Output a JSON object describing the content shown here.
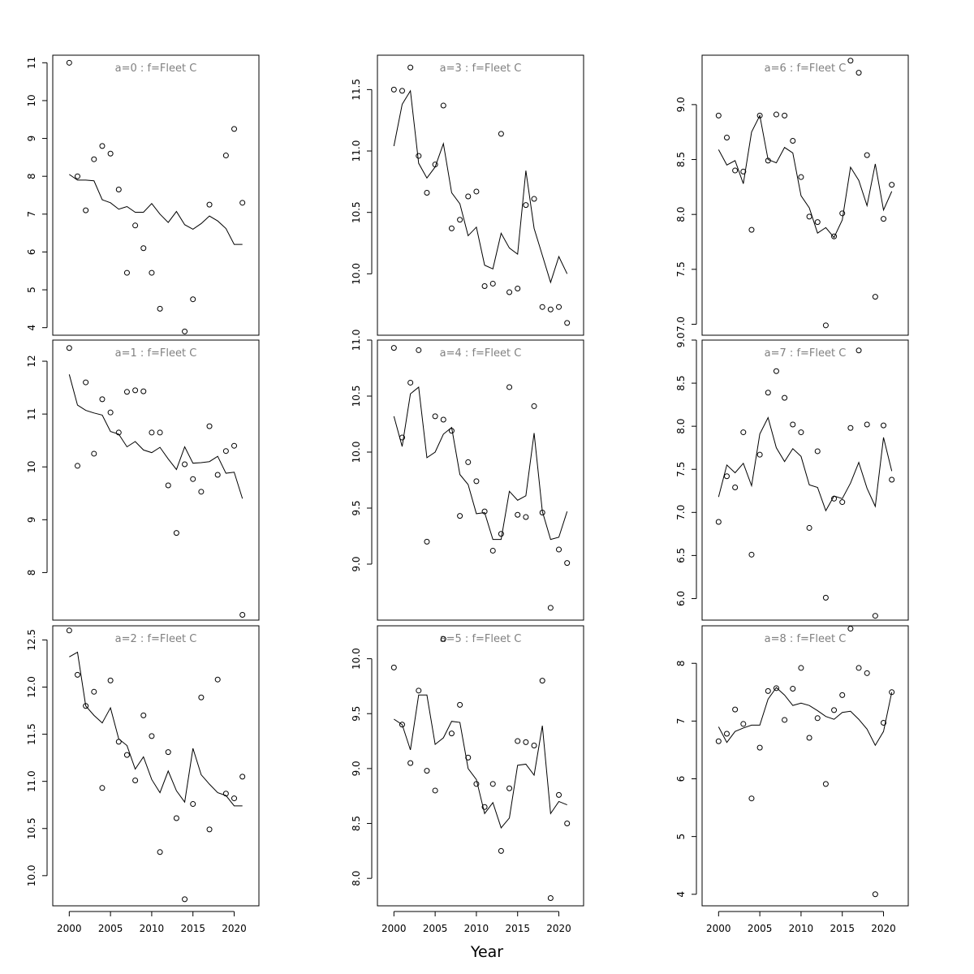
{
  "xlabel": "Year",
  "chart_data": [
    {
      "type": "line",
      "title": "a=0  :  f=Fleet C",
      "ylim": [
        3.8,
        11.2
      ],
      "yticks": [
        4,
        5,
        6,
        7,
        8,
        9,
        10,
        11
      ],
      "xlim": [
        1998,
        2023
      ],
      "xticks": [
        2000,
        2005,
        2010,
        2015,
        2020
      ],
      "show_xaxis": false,
      "x": [
        2000,
        2001,
        2002,
        2003,
        2004,
        2005,
        2006,
        2007,
        2008,
        2009,
        2010,
        2011,
        2012,
        2013,
        2014,
        2015,
        2016,
        2017,
        2018,
        2019,
        2020,
        2021
      ],
      "series": [
        {
          "style": "points",
          "values": [
            11.0,
            8.0,
            7.1,
            8.45,
            8.8,
            8.6,
            7.65,
            5.45,
            6.7,
            6.1,
            5.45,
            4.5,
            null,
            null,
            3.9,
            4.75,
            null,
            7.25,
            null,
            8.55,
            9.25,
            7.3
          ]
        },
        {
          "style": "line",
          "values": [
            8.05,
            7.9,
            7.9,
            7.88,
            7.38,
            7.3,
            7.13,
            7.2,
            7.05,
            7.05,
            7.28,
            7.0,
            6.78,
            7.07,
            6.72,
            6.6,
            6.75,
            6.95,
            6.82,
            6.62,
            6.2,
            6.2
          ]
        }
      ]
    },
    {
      "type": "line",
      "title": "a=1  :  f=Fleet C",
      "ylim": [
        7.1,
        12.4
      ],
      "yticks": [
        8,
        9,
        10,
        11,
        12
      ],
      "xlim": [
        1998,
        2023
      ],
      "xticks": [
        2000,
        2005,
        2010,
        2015,
        2020
      ],
      "show_xaxis": false,
      "x": [
        2000,
        2001,
        2002,
        2003,
        2004,
        2005,
        2006,
        2007,
        2008,
        2009,
        2010,
        2011,
        2012,
        2013,
        2014,
        2015,
        2016,
        2017,
        2018,
        2019,
        2020,
        2021
      ],
      "series": [
        {
          "style": "points",
          "values": [
            12.25,
            10.02,
            11.6,
            10.25,
            11.28,
            11.03,
            10.65,
            11.42,
            11.45,
            11.43,
            10.65,
            10.65,
            9.65,
            8.75,
            10.05,
            9.77,
            9.53,
            10.77,
            9.85,
            10.3,
            10.4,
            7.2
          ]
        },
        {
          "style": "line",
          "values": [
            11.75,
            11.17,
            11.07,
            11.02,
            10.98,
            10.67,
            10.62,
            10.38,
            10.48,
            10.32,
            10.27,
            10.37,
            10.15,
            9.95,
            10.38,
            10.07,
            10.08,
            10.1,
            10.2,
            9.88,
            9.9,
            9.4
          ]
        }
      ]
    },
    {
      "type": "line",
      "title": "a=2  :  f=Fleet C",
      "ylim": [
        9.68,
        12.65
      ],
      "yticks": [
        10.0,
        10.5,
        11.0,
        11.5,
        12.0,
        12.5
      ],
      "xlim": [
        1998,
        2023
      ],
      "xticks": [
        2000,
        2005,
        2010,
        2015,
        2020
      ],
      "show_xaxis": true,
      "x": [
        2000,
        2001,
        2002,
        2003,
        2004,
        2005,
        2006,
        2007,
        2008,
        2009,
        2010,
        2011,
        2012,
        2013,
        2014,
        2015,
        2016,
        2017,
        2018,
        2019,
        2020,
        2021
      ],
      "series": [
        {
          "style": "points",
          "values": [
            12.6,
            12.13,
            11.8,
            11.95,
            10.93,
            12.07,
            11.42,
            11.28,
            11.01,
            11.7,
            11.48,
            10.25,
            11.31,
            10.61,
            9.75,
            10.76,
            11.89,
            10.49,
            12.08,
            10.87,
            10.82,
            11.05
          ]
        },
        {
          "style": "line",
          "values": [
            12.32,
            12.37,
            11.8,
            11.7,
            11.62,
            11.78,
            11.45,
            11.38,
            11.13,
            11.26,
            11.02,
            10.88,
            11.11,
            10.9,
            10.78,
            11.35,
            11.07,
            10.97,
            10.88,
            10.85,
            10.74,
            10.74
          ]
        }
      ]
    },
    {
      "type": "line",
      "title": "a=3  :  f=Fleet C",
      "ylim": [
        9.5,
        11.78
      ],
      "yticks": [
        10.0,
        10.5,
        11.0,
        11.5
      ],
      "xlim": [
        1998,
        2023
      ],
      "xticks": [
        2000,
        2005,
        2010,
        2015,
        2020
      ],
      "show_xaxis": false,
      "x": [
        2000,
        2001,
        2002,
        2003,
        2004,
        2005,
        2006,
        2007,
        2008,
        2009,
        2010,
        2011,
        2012,
        2013,
        2014,
        2015,
        2016,
        2017,
        2018,
        2019,
        2020,
        2021
      ],
      "series": [
        {
          "style": "points",
          "values": [
            11.5,
            11.49,
            11.68,
            10.96,
            10.66,
            10.89,
            11.37,
            10.37,
            10.44,
            10.63,
            10.67,
            9.9,
            9.92,
            11.14,
            9.85,
            9.88,
            10.56,
            10.61,
            9.73,
            9.71,
            9.73,
            9.6
          ]
        },
        {
          "style": "line",
          "values": [
            11.04,
            11.38,
            11.49,
            10.9,
            10.78,
            10.87,
            11.06,
            10.66,
            10.57,
            10.31,
            10.38,
            10.07,
            10.04,
            10.33,
            10.21,
            10.16,
            10.84,
            10.37,
            10.15,
            9.93,
            10.14,
            10.0
          ]
        }
      ]
    },
    {
      "type": "line",
      "title": "a=4  :  f=Fleet C",
      "ylim": [
        8.5,
        11.0
      ],
      "yticks": [
        9.0,
        9.5,
        10.0,
        10.5,
        11.0
      ],
      "xlim": [
        1998,
        2023
      ],
      "xticks": [
        2000,
        2005,
        2010,
        2015,
        2020
      ],
      "show_xaxis": false,
      "x": [
        2000,
        2001,
        2002,
        2003,
        2004,
        2005,
        2006,
        2007,
        2008,
        2009,
        2010,
        2011,
        2012,
        2013,
        2014,
        2015,
        2016,
        2017,
        2018,
        2019,
        2020,
        2021
      ],
      "series": [
        {
          "style": "points",
          "values": [
            10.93,
            10.13,
            10.62,
            10.91,
            9.2,
            10.32,
            10.29,
            10.19,
            9.43,
            9.91,
            9.74,
            9.47,
            9.12,
            9.27,
            10.58,
            9.44,
            9.42,
            10.41,
            9.46,
            8.61,
            9.13,
            9.01
          ]
        },
        {
          "style": "line",
          "values": [
            10.32,
            10.05,
            10.52,
            10.58,
            9.95,
            10.0,
            10.16,
            10.22,
            9.8,
            9.71,
            9.45,
            9.46,
            9.22,
            9.22,
            9.65,
            9.57,
            9.61,
            10.17,
            9.47,
            9.22,
            9.24,
            9.47
          ]
        }
      ]
    },
    {
      "type": "line",
      "title": "a=5  :  f=Fleet C",
      "ylim": [
        7.75,
        10.3
      ],
      "yticks": [
        8.0,
        8.5,
        9.0,
        9.5,
        10.0
      ],
      "xlim": [
        1998,
        2023
      ],
      "xticks": [
        2000,
        2005,
        2010,
        2015,
        2020
      ],
      "show_xaxis": true,
      "x": [
        2000,
        2001,
        2002,
        2003,
        2004,
        2005,
        2006,
        2007,
        2008,
        2009,
        2010,
        2011,
        2012,
        2013,
        2014,
        2015,
        2016,
        2017,
        2018,
        2019,
        2020,
        2021
      ],
      "series": [
        {
          "style": "points",
          "values": [
            9.92,
            9.4,
            9.05,
            9.71,
            8.98,
            8.8,
            10.18,
            9.32,
            9.58,
            9.1,
            8.86,
            8.65,
            8.86,
            8.25,
            8.82,
            9.25,
            9.24,
            9.21,
            9.8,
            7.82,
            8.76,
            8.5
          ]
        },
        {
          "style": "line",
          "values": [
            9.45,
            9.4,
            9.17,
            9.67,
            9.67,
            9.22,
            9.28,
            9.43,
            9.42,
            9.0,
            8.9,
            8.59,
            8.69,
            8.46,
            8.55,
            9.03,
            9.04,
            8.94,
            9.39,
            8.59,
            8.7,
            8.67
          ]
        }
      ]
    },
    {
      "type": "line",
      "title": "a=6  :  f=Fleet C",
      "ylim": [
        6.9,
        9.45
      ],
      "yticks": [
        7.0,
        7.5,
        8.0,
        8.5,
        9.0
      ],
      "xlim": [
        1998,
        2023
      ],
      "xticks": [
        2000,
        2005,
        2010,
        2015,
        2020
      ],
      "show_xaxis": false,
      "x": [
        2000,
        2001,
        2002,
        2003,
        2004,
        2005,
        2006,
        2007,
        2008,
        2009,
        2010,
        2011,
        2012,
        2013,
        2014,
        2015,
        2016,
        2017,
        2018,
        2019,
        2020,
        2021
      ],
      "series": [
        {
          "style": "points",
          "values": [
            8.9,
            8.7,
            8.4,
            8.39,
            7.86,
            8.9,
            8.49,
            8.91,
            8.9,
            8.67,
            8.34,
            7.98,
            7.93,
            6.99,
            7.8,
            8.01,
            9.4,
            9.29,
            8.54,
            7.25,
            7.96,
            8.27
          ]
        },
        {
          "style": "line",
          "values": [
            8.59,
            8.45,
            8.49,
            8.28,
            8.75,
            8.9,
            8.5,
            8.47,
            8.61,
            8.56,
            8.17,
            8.06,
            7.83,
            7.88,
            7.79,
            7.95,
            8.43,
            8.31,
            8.08,
            8.46,
            8.04,
            8.21
          ]
        }
      ]
    },
    {
      "type": "line",
      "title": "a=7  :  f=Fleet C",
      "ylim": [
        5.75,
        9.0
      ],
      "yticks": [
        6.0,
        6.5,
        7.0,
        7.5,
        8.0,
        8.5,
        9.0
      ],
      "xlim": [
        1998,
        2023
      ],
      "xticks": [
        2000,
        2005,
        2010,
        2015,
        2020
      ],
      "show_xaxis": false,
      "x": [
        2000,
        2001,
        2002,
        2003,
        2004,
        2005,
        2006,
        2007,
        2008,
        2009,
        2010,
        2011,
        2012,
        2013,
        2014,
        2015,
        2016,
        2017,
        2018,
        2019,
        2020,
        2021
      ],
      "series": [
        {
          "style": "points",
          "values": [
            6.89,
            7.42,
            7.29,
            7.93,
            6.51,
            7.67,
            8.39,
            8.64,
            8.33,
            8.02,
            7.93,
            6.82,
            7.71,
            6.01,
            7.16,
            7.12,
            7.98,
            8.88,
            8.02,
            5.8,
            8.01,
            7.38
          ]
        },
        {
          "style": "line",
          "values": [
            7.18,
            7.55,
            7.46,
            7.57,
            7.31,
            7.91,
            8.1,
            7.75,
            7.59,
            7.74,
            7.65,
            7.32,
            7.29,
            7.02,
            7.19,
            7.16,
            7.34,
            7.58,
            7.28,
            7.07,
            7.87,
            7.48
          ]
        }
      ]
    },
    {
      "type": "line",
      "title": "a=8  :  f=Fleet C",
      "ylim": [
        3.8,
        8.65
      ],
      "yticks": [
        4,
        5,
        6,
        7,
        8
      ],
      "xlim": [
        1998,
        2023
      ],
      "xticks": [
        2000,
        2005,
        2010,
        2015,
        2020
      ],
      "show_xaxis": true,
      "x": [
        2000,
        2001,
        2002,
        2003,
        2004,
        2005,
        2006,
        2007,
        2008,
        2009,
        2010,
        2011,
        2012,
        2013,
        2014,
        2015,
        2016,
        2017,
        2018,
        2019,
        2020,
        2021
      ],
      "series": [
        {
          "style": "points",
          "values": [
            6.65,
            6.78,
            7.2,
            6.95,
            5.66,
            6.54,
            7.52,
            7.57,
            7.02,
            7.56,
            7.92,
            6.71,
            7.05,
            5.91,
            7.19,
            7.45,
            8.6,
            7.92,
            7.83,
            4.0,
            6.97,
            7.5
          ]
        },
        {
          "style": "line",
          "values": [
            6.9,
            6.63,
            6.82,
            6.88,
            6.93,
            6.93,
            7.38,
            7.58,
            7.45,
            7.27,
            7.31,
            7.27,
            7.18,
            7.08,
            7.03,
            7.15,
            7.17,
            7.03,
            6.86,
            6.58,
            6.82,
            7.5
          ]
        }
      ]
    }
  ]
}
